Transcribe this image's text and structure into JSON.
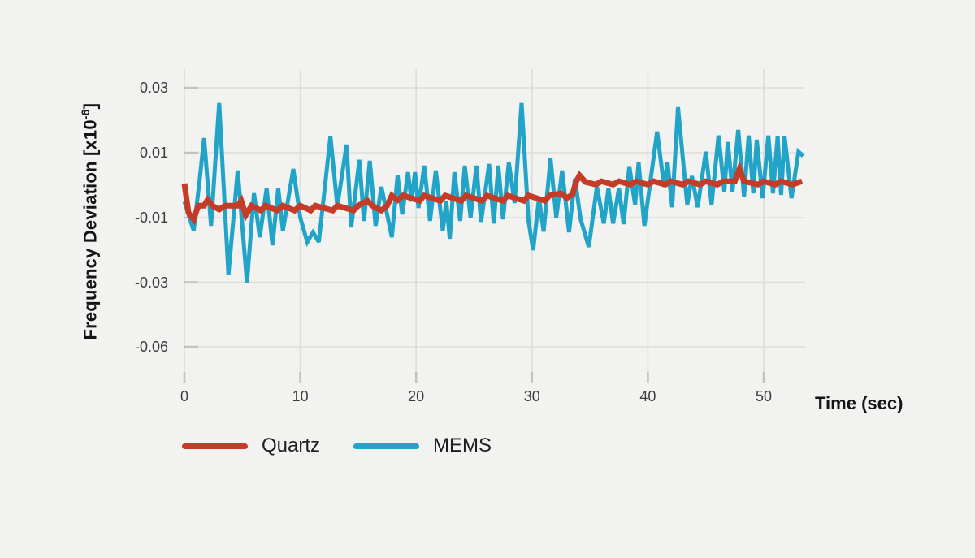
{
  "accent_colors": {
    "quartz_red": "#c43b28",
    "mems_blue": "#22a4c9",
    "background": "#f2f2f0",
    "gridline": "#dcdcda",
    "tick": "#c2c2c0",
    "text_dark": "#141414",
    "text_tick": "#3c3c3c"
  },
  "axes": {
    "y_title_prefix": "Frequency Deviation [x10",
    "y_title_exponent": "-6",
    "y_title_suffix": "]",
    "y_title_full": "Frequency Deviation [x10-6]",
    "x_title": "Time (sec)",
    "y_tick_labels": [
      "0.03",
      "0.01",
      "-0.01",
      "-0.03",
      "-0.06"
    ],
    "x_tick_labels": [
      "0",
      "10",
      "20",
      "30",
      "40",
      "50"
    ]
  },
  "legend": {
    "items": [
      {
        "label": "Quartz"
      },
      {
        "label": "MEMS"
      }
    ]
  },
  "chart_data": {
    "type": "line",
    "title": "",
    "xlabel": "Time (sec)",
    "ylabel": "Frequency Deviation [x10^-6]",
    "xlim": [
      0,
      53.5
    ],
    "x_tick_values": [
      0,
      10,
      20,
      30,
      40,
      50
    ],
    "y_tick_values": [
      0.03,
      0.01,
      -0.01,
      -0.03,
      -0.06
    ],
    "y_scale_note": "ticks equally spaced; linear 0.02-per-step from 0.03 to -0.03, last step -0.03 to -0.06 compressed",
    "grid": true,
    "legend_position": "bottom-left",
    "series": [
      {
        "name": "MEMS",
        "color": "#22a4c9",
        "stroke_width": 5,
        "points": [
          [
            0,
            -0.005
          ],
          [
            0.8,
            -0.014
          ],
          [
            1.3,
            0.001
          ],
          [
            1.7,
            0.0145
          ],
          [
            2.3,
            -0.0125
          ],
          [
            3.0,
            0.0253
          ],
          [
            3.8,
            -0.0275
          ],
          [
            4.6,
            0.0045
          ],
          [
            5.4,
            -0.03
          ],
          [
            6.0,
            -0.0025
          ],
          [
            6.5,
            -0.016
          ],
          [
            7.1,
            -0.001
          ],
          [
            7.6,
            -0.0185
          ],
          [
            8.1,
            -0.001
          ],
          [
            8.5,
            -0.014
          ],
          [
            9.4,
            0.005
          ],
          [
            10.0,
            -0.01
          ],
          [
            10.6,
            -0.0175
          ],
          [
            11.1,
            -0.0145
          ],
          [
            11.6,
            -0.0175
          ],
          [
            12.6,
            0.015
          ],
          [
            13.2,
            -0.0065
          ],
          [
            14.0,
            0.0125
          ],
          [
            14.4,
            -0.013
          ],
          [
            15.1,
            0.0078
          ],
          [
            15.5,
            -0.011
          ],
          [
            16.0,
            0.0075
          ],
          [
            16.5,
            -0.0125
          ],
          [
            17.0,
            -0.0005
          ],
          [
            17.9,
            -0.016
          ],
          [
            18.4,
            0.003
          ],
          [
            18.8,
            -0.009
          ],
          [
            19.3,
            0.004
          ],
          [
            19.6,
            -0.005
          ],
          [
            19.9,
            0.004
          ],
          [
            20.2,
            -0.007
          ],
          [
            20.7,
            0.006
          ],
          [
            21.2,
            -0.011
          ],
          [
            21.7,
            0.0045
          ],
          [
            22.3,
            -0.014
          ],
          [
            22.6,
            -0.005
          ],
          [
            22.9,
            -0.0165
          ],
          [
            23.3,
            0.004
          ],
          [
            23.8,
            -0.011
          ],
          [
            24.2,
            0.006
          ],
          [
            24.7,
            -0.01
          ],
          [
            25.2,
            0.006
          ],
          [
            25.6,
            -0.0113
          ],
          [
            26.3,
            0.0065
          ],
          [
            26.7,
            -0.0118
          ],
          [
            27.1,
            0.006
          ],
          [
            27.5,
            -0.0105
          ],
          [
            28.0,
            0.007
          ],
          [
            28.5,
            -0.0055
          ],
          [
            29.1,
            0.0253
          ],
          [
            29.7,
            -0.011
          ],
          [
            30.1,
            -0.02
          ],
          [
            30.6,
            -0.004
          ],
          [
            31.0,
            -0.0143
          ],
          [
            31.6,
            0.0082
          ],
          [
            32.1,
            -0.01
          ],
          [
            32.6,
            0.0045
          ],
          [
            33.2,
            -0.0145
          ],
          [
            33.7,
            0.002
          ],
          [
            34.2,
            -0.0105
          ],
          [
            34.9,
            -0.019
          ],
          [
            35.6,
            -0.0005
          ],
          [
            36.2,
            -0.0118
          ],
          [
            36.6,
            -0.001
          ],
          [
            37.0,
            -0.0118
          ],
          [
            37.5,
            -0.001
          ],
          [
            37.9,
            -0.012
          ],
          [
            38.4,
            0.0058
          ],
          [
            38.9,
            -0.006
          ],
          [
            39.2,
            0.007
          ],
          [
            39.7,
            -0.0125
          ],
          [
            40.8,
            0.0165
          ],
          [
            41.4,
            -0.0005
          ],
          [
            41.7,
            0.007
          ],
          [
            42.1,
            -0.0068
          ],
          [
            42.6,
            0.024
          ],
          [
            43.4,
            -0.006
          ],
          [
            43.8,
            0.0028
          ],
          [
            44.3,
            -0.0068
          ],
          [
            45.0,
            0.0103
          ],
          [
            45.5,
            -0.006
          ],
          [
            46.1,
            0.0153
          ],
          [
            46.6,
            -0.002
          ],
          [
            46.9,
            0.0133
          ],
          [
            47.3,
            -0.002
          ],
          [
            47.8,
            0.017
          ],
          [
            48.3,
            -0.0035
          ],
          [
            48.7,
            0.0153
          ],
          [
            49.1,
            -0.0025
          ],
          [
            49.4,
            0.014
          ],
          [
            49.9,
            -0.004
          ],
          [
            50.4,
            0.0153
          ],
          [
            50.8,
            -0.0025
          ],
          [
            51.2,
            0.015
          ],
          [
            51.5,
            -0.003
          ],
          [
            51.8,
            0.015
          ],
          [
            52.4,
            -0.004
          ],
          [
            53.0,
            0.0103
          ],
          [
            53.4,
            0.009
          ]
        ]
      },
      {
        "name": "Quartz",
        "color": "#c43b28",
        "stroke_width": 7,
        "points": [
          [
            0,
            0.0005
          ],
          [
            0.35,
            -0.0085
          ],
          [
            0.8,
            -0.0105
          ],
          [
            1.2,
            -0.0063
          ],
          [
            1.7,
            -0.0063
          ],
          [
            2.0,
            -0.0045
          ],
          [
            2.4,
            -0.0063
          ],
          [
            3.0,
            -0.0075
          ],
          [
            3.5,
            -0.0063
          ],
          [
            4.6,
            -0.0063
          ],
          [
            4.9,
            -0.0048
          ],
          [
            5.3,
            -0.0092
          ],
          [
            5.8,
            -0.0063
          ],
          [
            6.6,
            -0.0078
          ],
          [
            7.0,
            -0.0063
          ],
          [
            8.0,
            -0.0078
          ],
          [
            8.5,
            -0.0063
          ],
          [
            9.5,
            -0.0078
          ],
          [
            10.0,
            -0.0063
          ],
          [
            10.9,
            -0.0078
          ],
          [
            11.3,
            -0.0063
          ],
          [
            12.8,
            -0.0078
          ],
          [
            13.2,
            -0.0063
          ],
          [
            14.6,
            -0.0078
          ],
          [
            15.0,
            -0.0063
          ],
          [
            15.8,
            -0.0048
          ],
          [
            16.2,
            -0.0063
          ],
          [
            17.0,
            -0.0078
          ],
          [
            17.5,
            -0.0063
          ],
          [
            17.9,
            -0.0032
          ],
          [
            18.4,
            -0.0046
          ],
          [
            18.9,
            -0.0032
          ],
          [
            20.3,
            -0.0048
          ],
          [
            20.7,
            -0.0032
          ],
          [
            22.1,
            -0.0048
          ],
          [
            22.5,
            -0.0032
          ],
          [
            23.9,
            -0.0048
          ],
          [
            24.3,
            -0.0032
          ],
          [
            25.7,
            -0.0048
          ],
          [
            26.1,
            -0.0032
          ],
          [
            27.5,
            -0.0048
          ],
          [
            27.9,
            -0.0032
          ],
          [
            29.3,
            -0.0048
          ],
          [
            29.7,
            -0.0032
          ],
          [
            31.1,
            -0.0048
          ],
          [
            31.5,
            -0.0032
          ],
          [
            32.5,
            -0.0025
          ],
          [
            33.0,
            -0.004
          ],
          [
            33.5,
            -0.0028
          ],
          [
            33.8,
            0.001
          ],
          [
            34.1,
            0.003
          ],
          [
            34.6,
            0.001
          ],
          [
            35.5,
            0.0002
          ],
          [
            36.0,
            0.0012
          ],
          [
            37.0,
            0.0002
          ],
          [
            37.5,
            0.0012
          ],
          [
            38.5,
            0.0002
          ],
          [
            39.0,
            0.0012
          ],
          [
            40.0,
            0.0002
          ],
          [
            40.5,
            0.0012
          ],
          [
            41.5,
            0.0002
          ],
          [
            42.0,
            0.0012
          ],
          [
            43.0,
            0.0002
          ],
          [
            43.5,
            0.0012
          ],
          [
            44.5,
            0.0002
          ],
          [
            45.0,
            0.0012
          ],
          [
            46.0,
            0.0002
          ],
          [
            46.5,
            0.0012
          ],
          [
            47.5,
            0.0012
          ],
          [
            47.9,
            0.005
          ],
          [
            48.3,
            0.0012
          ],
          [
            49.5,
            0.0002
          ],
          [
            50.0,
            0.0012
          ],
          [
            51.0,
            0.0002
          ],
          [
            51.5,
            0.0012
          ],
          [
            52.5,
            0.0002
          ],
          [
            53.3,
            0.0012
          ]
        ]
      }
    ]
  }
}
